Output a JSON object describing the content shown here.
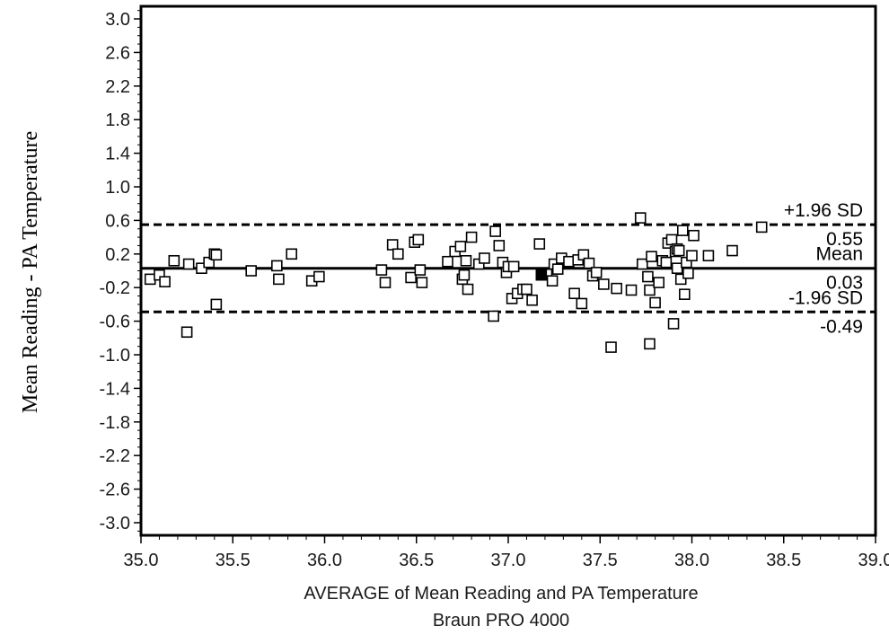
{
  "chart_data": {
    "type": "scatter",
    "title": "",
    "xlabel": "AVERAGE of Mean Reading and PA Temperature",
    "xlabel2": "Braun PRO 4000",
    "ylabel": "Mean Reading - PA Temperature",
    "xlim": [
      35.0,
      39.0
    ],
    "ylim": [
      -3.15,
      3.15
    ],
    "xticks": [
      "35.0",
      "35.5",
      "36.0",
      "36.5",
      "37.0",
      "37.5",
      "38.0",
      "38.5",
      "39.0"
    ],
    "yticks": [
      "3.0",
      "2.6",
      "2.2",
      "1.8",
      "1.4",
      "1.0",
      "0.6",
      "0.2",
      "-0.2",
      "-0.6",
      "-1.0",
      "-1.4",
      "-1.8",
      "-2.2",
      "-2.6",
      "-3.0"
    ],
    "grid": false,
    "reference_lines": [
      {
        "name": "+1.96 SD",
        "value": 0.55,
        "style": "dashed",
        "label_top": "+1.96 SD",
        "label_bottom": "0.55"
      },
      {
        "name": "Mean",
        "value": 0.03,
        "style": "solid",
        "label_top": "Mean",
        "label_bottom": "0.03"
      },
      {
        "name": "-1.96 SD",
        "value": -0.49,
        "style": "dashed",
        "label_top": "-1.96 SD",
        "label_bottom": "-0.49"
      }
    ],
    "series": [
      {
        "marker": "open-square",
        "points": [
          [
            35.05,
            -0.1
          ],
          [
            35.1,
            -0.05
          ],
          [
            35.13,
            -0.13
          ],
          [
            35.18,
            0.12
          ],
          [
            35.25,
            -0.73
          ],
          [
            35.26,
            0.08
          ],
          [
            35.33,
            0.03
          ],
          [
            35.37,
            0.1
          ],
          [
            35.4,
            0.2
          ],
          [
            35.41,
            0.19
          ],
          [
            35.41,
            -0.4
          ],
          [
            35.6,
            0.0
          ],
          [
            35.74,
            0.06
          ],
          [
            35.75,
            -0.1
          ],
          [
            35.82,
            0.2
          ],
          [
            35.93,
            -0.12
          ],
          [
            35.97,
            -0.07
          ],
          [
            36.31,
            0.01
          ],
          [
            36.33,
            -0.14
          ],
          [
            36.37,
            0.31
          ],
          [
            36.4,
            0.2
          ],
          [
            36.47,
            -0.08
          ],
          [
            36.49,
            0.34
          ],
          [
            36.51,
            0.37
          ],
          [
            36.52,
            0.01
          ],
          [
            36.53,
            -0.14
          ],
          [
            36.67,
            0.11
          ],
          [
            36.71,
            0.23
          ],
          [
            36.74,
            0.29
          ],
          [
            36.75,
            -0.1
          ],
          [
            36.76,
            -0.05
          ],
          [
            36.77,
            0.12
          ],
          [
            36.78,
            -0.22
          ],
          [
            36.8,
            0.4
          ],
          [
            36.84,
            0.08
          ],
          [
            36.87,
            0.15
          ],
          [
            36.92,
            -0.54
          ],
          [
            36.93,
            0.47
          ],
          [
            36.95,
            0.3
          ],
          [
            36.97,
            0.1
          ],
          [
            36.99,
            -0.02
          ],
          [
            37.0,
            0.05
          ],
          [
            37.02,
            -0.33
          ],
          [
            37.03,
            0.05
          ],
          [
            37.05,
            -0.27
          ],
          [
            37.08,
            -0.22
          ],
          [
            37.1,
            -0.22
          ],
          [
            37.13,
            -0.35
          ],
          [
            37.17,
            0.32
          ],
          [
            37.18,
            -0.05
          ],
          [
            37.19,
            -0.04
          ],
          [
            37.21,
            -0.04
          ],
          [
            37.24,
            -0.12
          ],
          [
            37.25,
            0.08
          ],
          [
            37.27,
            0.02
          ],
          [
            37.29,
            0.15
          ],
          [
            37.33,
            0.11
          ],
          [
            37.36,
            -0.27
          ],
          [
            37.38,
            0.13
          ],
          [
            37.4,
            -0.39
          ],
          [
            37.41,
            0.19
          ],
          [
            37.44,
            0.09
          ],
          [
            37.46,
            -0.06
          ],
          [
            37.48,
            -0.02
          ],
          [
            37.52,
            -0.16
          ],
          [
            37.56,
            -0.91
          ],
          [
            37.59,
            -0.21
          ],
          [
            37.67,
            -0.23
          ],
          [
            37.72,
            0.63
          ],
          [
            37.73,
            0.08
          ],
          [
            37.76,
            -0.07
          ],
          [
            37.77,
            -0.87
          ],
          [
            37.77,
            -0.23
          ],
          [
            37.78,
            0.17
          ],
          [
            37.8,
            -0.38
          ],
          [
            37.82,
            -0.14
          ],
          [
            37.84,
            0.12
          ],
          [
            37.86,
            0.1
          ],
          [
            37.87,
            0.33
          ],
          [
            37.89,
            0.37
          ],
          [
            37.9,
            -0.63
          ],
          [
            37.91,
            0.23
          ],
          [
            37.92,
            0.03
          ],
          [
            37.92,
            0.26
          ],
          [
            37.93,
            0.24
          ],
          [
            37.94,
            -0.1
          ],
          [
            37.95,
            0.48
          ],
          [
            37.96,
            -0.28
          ],
          [
            37.97,
            0.1
          ],
          [
            37.98,
            -0.03
          ],
          [
            38.0,
            0.18
          ],
          [
            38.01,
            0.42
          ],
          [
            38.09,
            0.18
          ],
          [
            38.22,
            0.24
          ],
          [
            38.38,
            0.52
          ]
        ]
      }
    ],
    "filled_points": [
      [
        37.18,
        -0.05
      ]
    ]
  }
}
